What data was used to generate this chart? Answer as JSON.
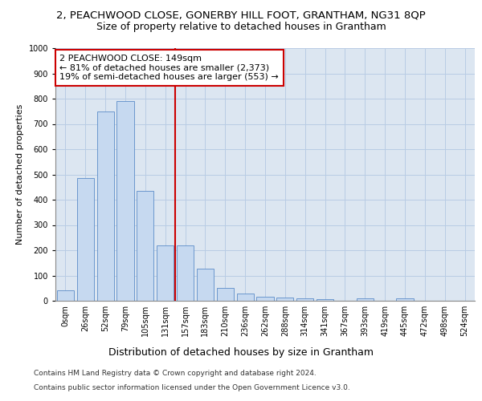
{
  "title_line1": "2, PEACHWOOD CLOSE, GONERBY HILL FOOT, GRANTHAM, NG31 8QP",
  "title_line2": "Size of property relative to detached houses in Grantham",
  "xlabel": "Distribution of detached houses by size in Grantham",
  "ylabel": "Number of detached properties",
  "bar_labels": [
    "0sqm",
    "26sqm",
    "52sqm",
    "79sqm",
    "105sqm",
    "131sqm",
    "157sqm",
    "183sqm",
    "210sqm",
    "236sqm",
    "262sqm",
    "288sqm",
    "314sqm",
    "341sqm",
    "367sqm",
    "393sqm",
    "419sqm",
    "445sqm",
    "472sqm",
    "498sqm",
    "524sqm"
  ],
  "bar_heights": [
    40,
    485,
    748,
    790,
    435,
    220,
    220,
    127,
    50,
    28,
    15,
    12,
    8,
    5,
    0,
    8,
    0,
    8,
    0,
    0,
    0
  ],
  "bar_color": "#c6d9f0",
  "bar_edge_color": "#5b8cc8",
  "vline_x": 5.5,
  "vline_color": "#cc0000",
  "annotation_text": "2 PEACHWOOD CLOSE: 149sqm\n← 81% of detached houses are smaller (2,373)\n19% of semi-detached houses are larger (553) →",
  "annotation_box_color": "#ffffff",
  "annotation_box_edge_color": "#cc0000",
  "ylim": [
    0,
    1000
  ],
  "yticks": [
    0,
    100,
    200,
    300,
    400,
    500,
    600,
    700,
    800,
    900,
    1000
  ],
  "grid_color": "#b8cce4",
  "background_color": "#dce6f1",
  "footer_line1": "Contains HM Land Registry data © Crown copyright and database right 2024.",
  "footer_line2": "Contains public sector information licensed under the Open Government Licence v3.0.",
  "title_fontsize": 9.5,
  "subtitle_fontsize": 9,
  "tick_fontsize": 7,
  "ylabel_fontsize": 8,
  "xlabel_fontsize": 9,
  "annotation_fontsize": 8,
  "footer_fontsize": 6.5
}
